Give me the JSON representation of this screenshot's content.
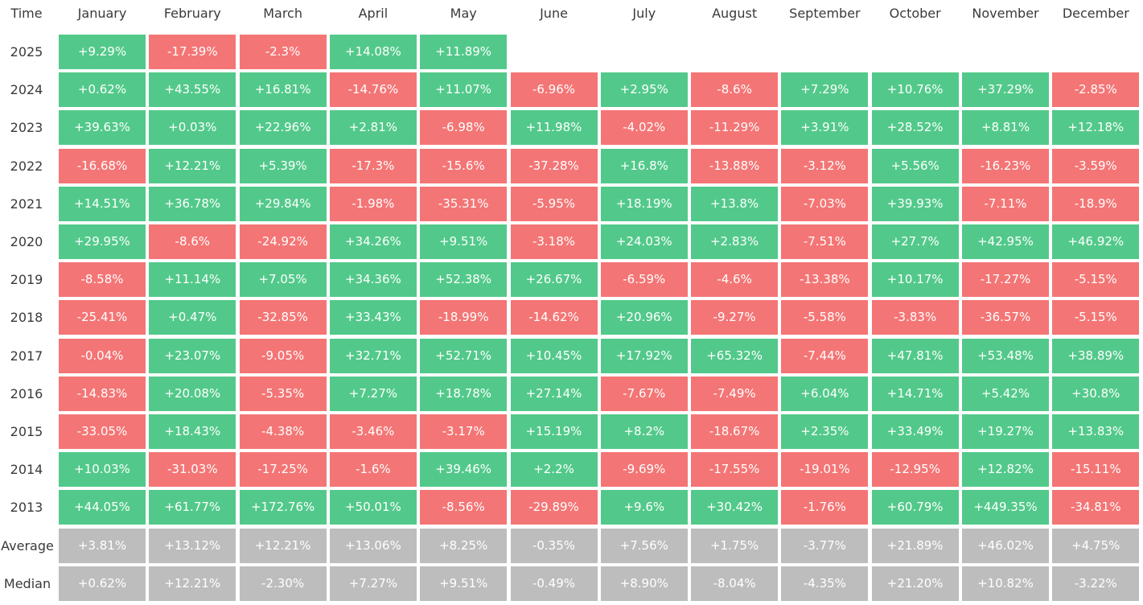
{
  "chart_data": {
    "type": "table",
    "corner_label": "Time",
    "columns": [
      "January",
      "February",
      "March",
      "April",
      "May",
      "June",
      "July",
      "August",
      "September",
      "October",
      "November",
      "December"
    ],
    "rows": [
      {
        "label": "2025",
        "values": [
          "+9.29%",
          "-17.39%",
          "-2.3%",
          "+14.08%",
          "+11.89%",
          "",
          "",
          "",
          "",
          "",
          "",
          ""
        ]
      },
      {
        "label": "2024",
        "values": [
          "+0.62%",
          "+43.55%",
          "+16.81%",
          "-14.76%",
          "+11.07%",
          "-6.96%",
          "+2.95%",
          "-8.6%",
          "+7.29%",
          "+10.76%",
          "+37.29%",
          "-2.85%"
        ]
      },
      {
        "label": "2023",
        "values": [
          "+39.63%",
          "+0.03%",
          "+22.96%",
          "+2.81%",
          "-6.98%",
          "+11.98%",
          "-4.02%",
          "-11.29%",
          "+3.91%",
          "+28.52%",
          "+8.81%",
          "+12.18%"
        ]
      },
      {
        "label": "2022",
        "values": [
          "-16.68%",
          "+12.21%",
          "+5.39%",
          "-17.3%",
          "-15.6%",
          "-37.28%",
          "+16.8%",
          "-13.88%",
          "-3.12%",
          "+5.56%",
          "-16.23%",
          "-3.59%"
        ]
      },
      {
        "label": "2021",
        "values": [
          "+14.51%",
          "+36.78%",
          "+29.84%",
          "-1.98%",
          "-35.31%",
          "-5.95%",
          "+18.19%",
          "+13.8%",
          "-7.03%",
          "+39.93%",
          "-7.11%",
          "-18.9%"
        ]
      },
      {
        "label": "2020",
        "values": [
          "+29.95%",
          "-8.6%",
          "-24.92%",
          "+34.26%",
          "+9.51%",
          "-3.18%",
          "+24.03%",
          "+2.83%",
          "-7.51%",
          "+27.7%",
          "+42.95%",
          "+46.92%"
        ]
      },
      {
        "label": "2019",
        "values": [
          "-8.58%",
          "+11.14%",
          "+7.05%",
          "+34.36%",
          "+52.38%",
          "+26.67%",
          "-6.59%",
          "-4.6%",
          "-13.38%",
          "+10.17%",
          "-17.27%",
          "-5.15%"
        ]
      },
      {
        "label": "2018",
        "values": [
          "-25.41%",
          "+0.47%",
          "-32.85%",
          "+33.43%",
          "-18.99%",
          "-14.62%",
          "+20.96%",
          "-9.27%",
          "-5.58%",
          "-3.83%",
          "-36.57%",
          "-5.15%"
        ]
      },
      {
        "label": "2017",
        "values": [
          "-0.04%",
          "+23.07%",
          "-9.05%",
          "+32.71%",
          "+52.71%",
          "+10.45%",
          "+17.92%",
          "+65.32%",
          "-7.44%",
          "+47.81%",
          "+53.48%",
          "+38.89%"
        ]
      },
      {
        "label": "2016",
        "values": [
          "-14.83%",
          "+20.08%",
          "-5.35%",
          "+7.27%",
          "+18.78%",
          "+27.14%",
          "-7.67%",
          "-7.49%",
          "+6.04%",
          "+14.71%",
          "+5.42%",
          "+30.8%"
        ]
      },
      {
        "label": "2015",
        "values": [
          "-33.05%",
          "+18.43%",
          "-4.38%",
          "-3.46%",
          "-3.17%",
          "+15.19%",
          "+8.2%",
          "-18.67%",
          "+2.35%",
          "+33.49%",
          "+19.27%",
          "+13.83%"
        ]
      },
      {
        "label": "2014",
        "values": [
          "+10.03%",
          "-31.03%",
          "-17.25%",
          "-1.6%",
          "+39.46%",
          "+2.2%",
          "-9.69%",
          "-17.55%",
          "-19.01%",
          "-12.95%",
          "+12.82%",
          "-15.11%"
        ]
      },
      {
        "label": "2013",
        "values": [
          "+44.05%",
          "+61.77%",
          "+172.76%",
          "+50.01%",
          "-8.56%",
          "-29.89%",
          "+9.6%",
          "+30.42%",
          "-1.76%",
          "+60.79%",
          "+449.35%",
          "-34.81%"
        ]
      }
    ],
    "summary_rows": [
      {
        "label": "Average",
        "values": [
          "+3.81%",
          "+13.12%",
          "+12.21%",
          "+13.06%",
          "+8.25%",
          "-0.35%",
          "+7.56%",
          "+1.75%",
          "-3.77%",
          "+21.89%",
          "+46.02%",
          "+4.75%"
        ]
      },
      {
        "label": "Median",
        "values": [
          "+0.62%",
          "+12.21%",
          "-2.30%",
          "+7.27%",
          "+9.51%",
          "-0.49%",
          "+8.90%",
          "-8.04%",
          "-4.35%",
          "+21.20%",
          "+10.82%",
          "-3.22%"
        ]
      }
    ],
    "colors": {
      "positive": "#52c98a",
      "negative": "#f47575",
      "summary": "#bdbdbd"
    }
  }
}
